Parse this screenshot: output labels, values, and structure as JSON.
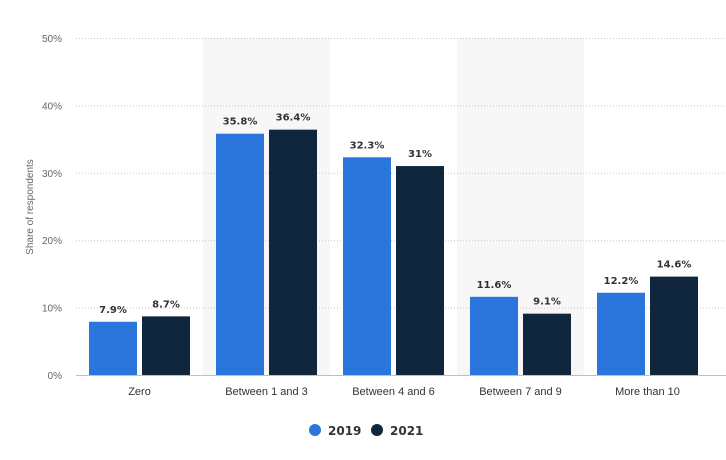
{
  "chart_data": {
    "type": "bar",
    "ylabel": "Share of respondents",
    "xlabel": "",
    "ylim": [
      0,
      50
    ],
    "yticks": [
      "0%",
      "10%",
      "20%",
      "30%",
      "40%",
      "50%"
    ],
    "categories": [
      "Zero",
      "Between 1 and 3",
      "Between 4 and 6",
      "Between 7 and 9",
      "More than 10"
    ],
    "series": [
      {
        "name": "2019",
        "values": [
          7.9,
          35.8,
          32.3,
          11.6,
          12.2
        ],
        "labels": [
          "7.9%",
          "35.8%",
          "32.3%",
          "11.6%",
          "12.2%"
        ],
        "color": "#2a76dc"
      },
      {
        "name": "2021",
        "values": [
          8.7,
          36.4,
          31,
          9.1,
          14.6
        ],
        "labels": [
          "8.7%",
          "36.4%",
          "31%",
          "9.1%",
          "14.6%"
        ],
        "color": "#10263d"
      }
    ],
    "grid": true,
    "alternating_band_color": "#f7f7f7",
    "legend_position": "bottom-center"
  }
}
